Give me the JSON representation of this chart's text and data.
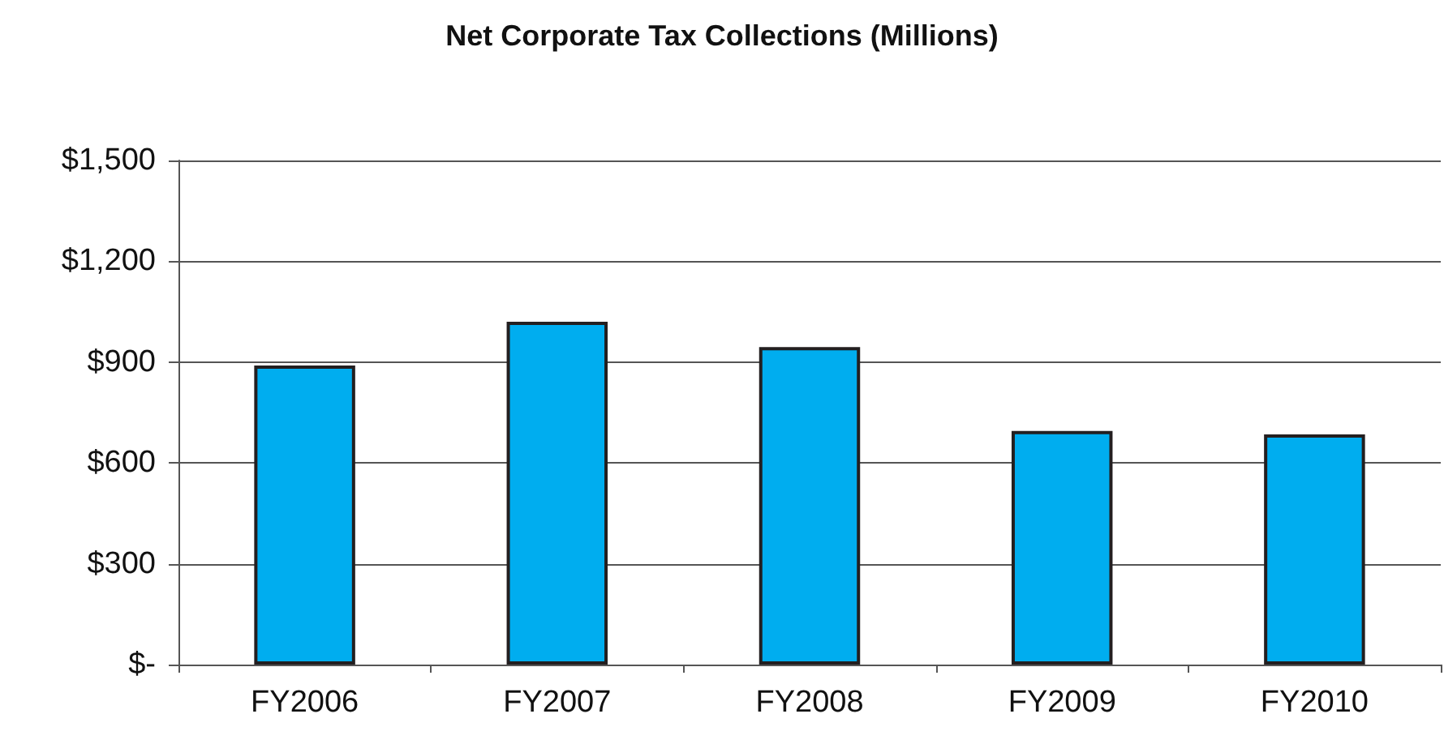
{
  "chart_data": {
    "type": "bar",
    "title": "Net Corporate Tax Collections (Millions)",
    "categories": [
      "FY2006",
      "FY2007",
      "FY2008",
      "FY2009",
      "FY2010"
    ],
    "values": [
      890,
      1020,
      945,
      695,
      685
    ],
    "color": "#00adef",
    "ylim": [
      0,
      1500
    ],
    "yticks": [
      {
        "value": 0,
        "label": "$-"
      },
      {
        "value": 300,
        "label": "$300"
      },
      {
        "value": 600,
        "label": "$600"
      },
      {
        "value": 900,
        "label": "$900"
      },
      {
        "value": 1200,
        "label": "$1,200"
      },
      {
        "value": 1500,
        "label": "$1,500"
      }
    ],
    "grid": "y"
  }
}
